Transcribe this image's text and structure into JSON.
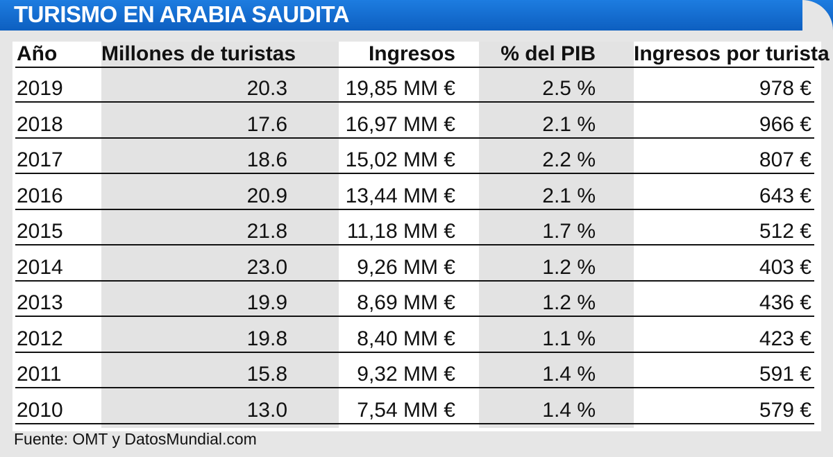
{
  "title": "TURISMO EN ARABIA SAUDITA",
  "footer": "Fuente: OMT y DatosMundial.com",
  "colors": {
    "title_bar": "#0d6ad0",
    "title_text": "#ffffff",
    "shade": "#e3e3e3",
    "background": "#e6e6e6"
  },
  "chart_data": {
    "type": "table",
    "title": "TURISMO EN ARABIA SAUDITA",
    "columns": [
      "Año",
      "Millones de turistas",
      "Ingresos",
      "% del PIB",
      "Ingresos por turista"
    ],
    "rows": [
      [
        "2019",
        "20.3",
        "19,85 MM €",
        "2.5 %",
        "978 €"
      ],
      [
        "2018",
        "17.6",
        "16,97 MM €",
        "2.1 %",
        "966 €"
      ],
      [
        "2017",
        "18.6",
        "15,02 MM €",
        "2.2 %",
        "807 €"
      ],
      [
        "2016",
        "20.9",
        "13,44 MM €",
        "2.1 %",
        "643 €"
      ],
      [
        "2015",
        "21.8",
        "11,18 MM €",
        "1.7 %",
        "512 €"
      ],
      [
        "2014",
        "23.0",
        "9,26 MM €",
        "1.2 %",
        "403 €"
      ],
      [
        "2013",
        "19.9",
        "8,69 MM €",
        "1.2 %",
        "436 €"
      ],
      [
        "2012",
        "19.8",
        "8,40 MM €",
        "1.1 %",
        "423 €"
      ],
      [
        "2011",
        "15.8",
        "9,32 MM €",
        "1.4 %",
        "591 €"
      ],
      [
        "2010",
        "13.0",
        "7,54 MM €",
        "1.4 %",
        "579 €"
      ]
    ],
    "source": "Fuente: OMT y DatosMundial.com"
  }
}
